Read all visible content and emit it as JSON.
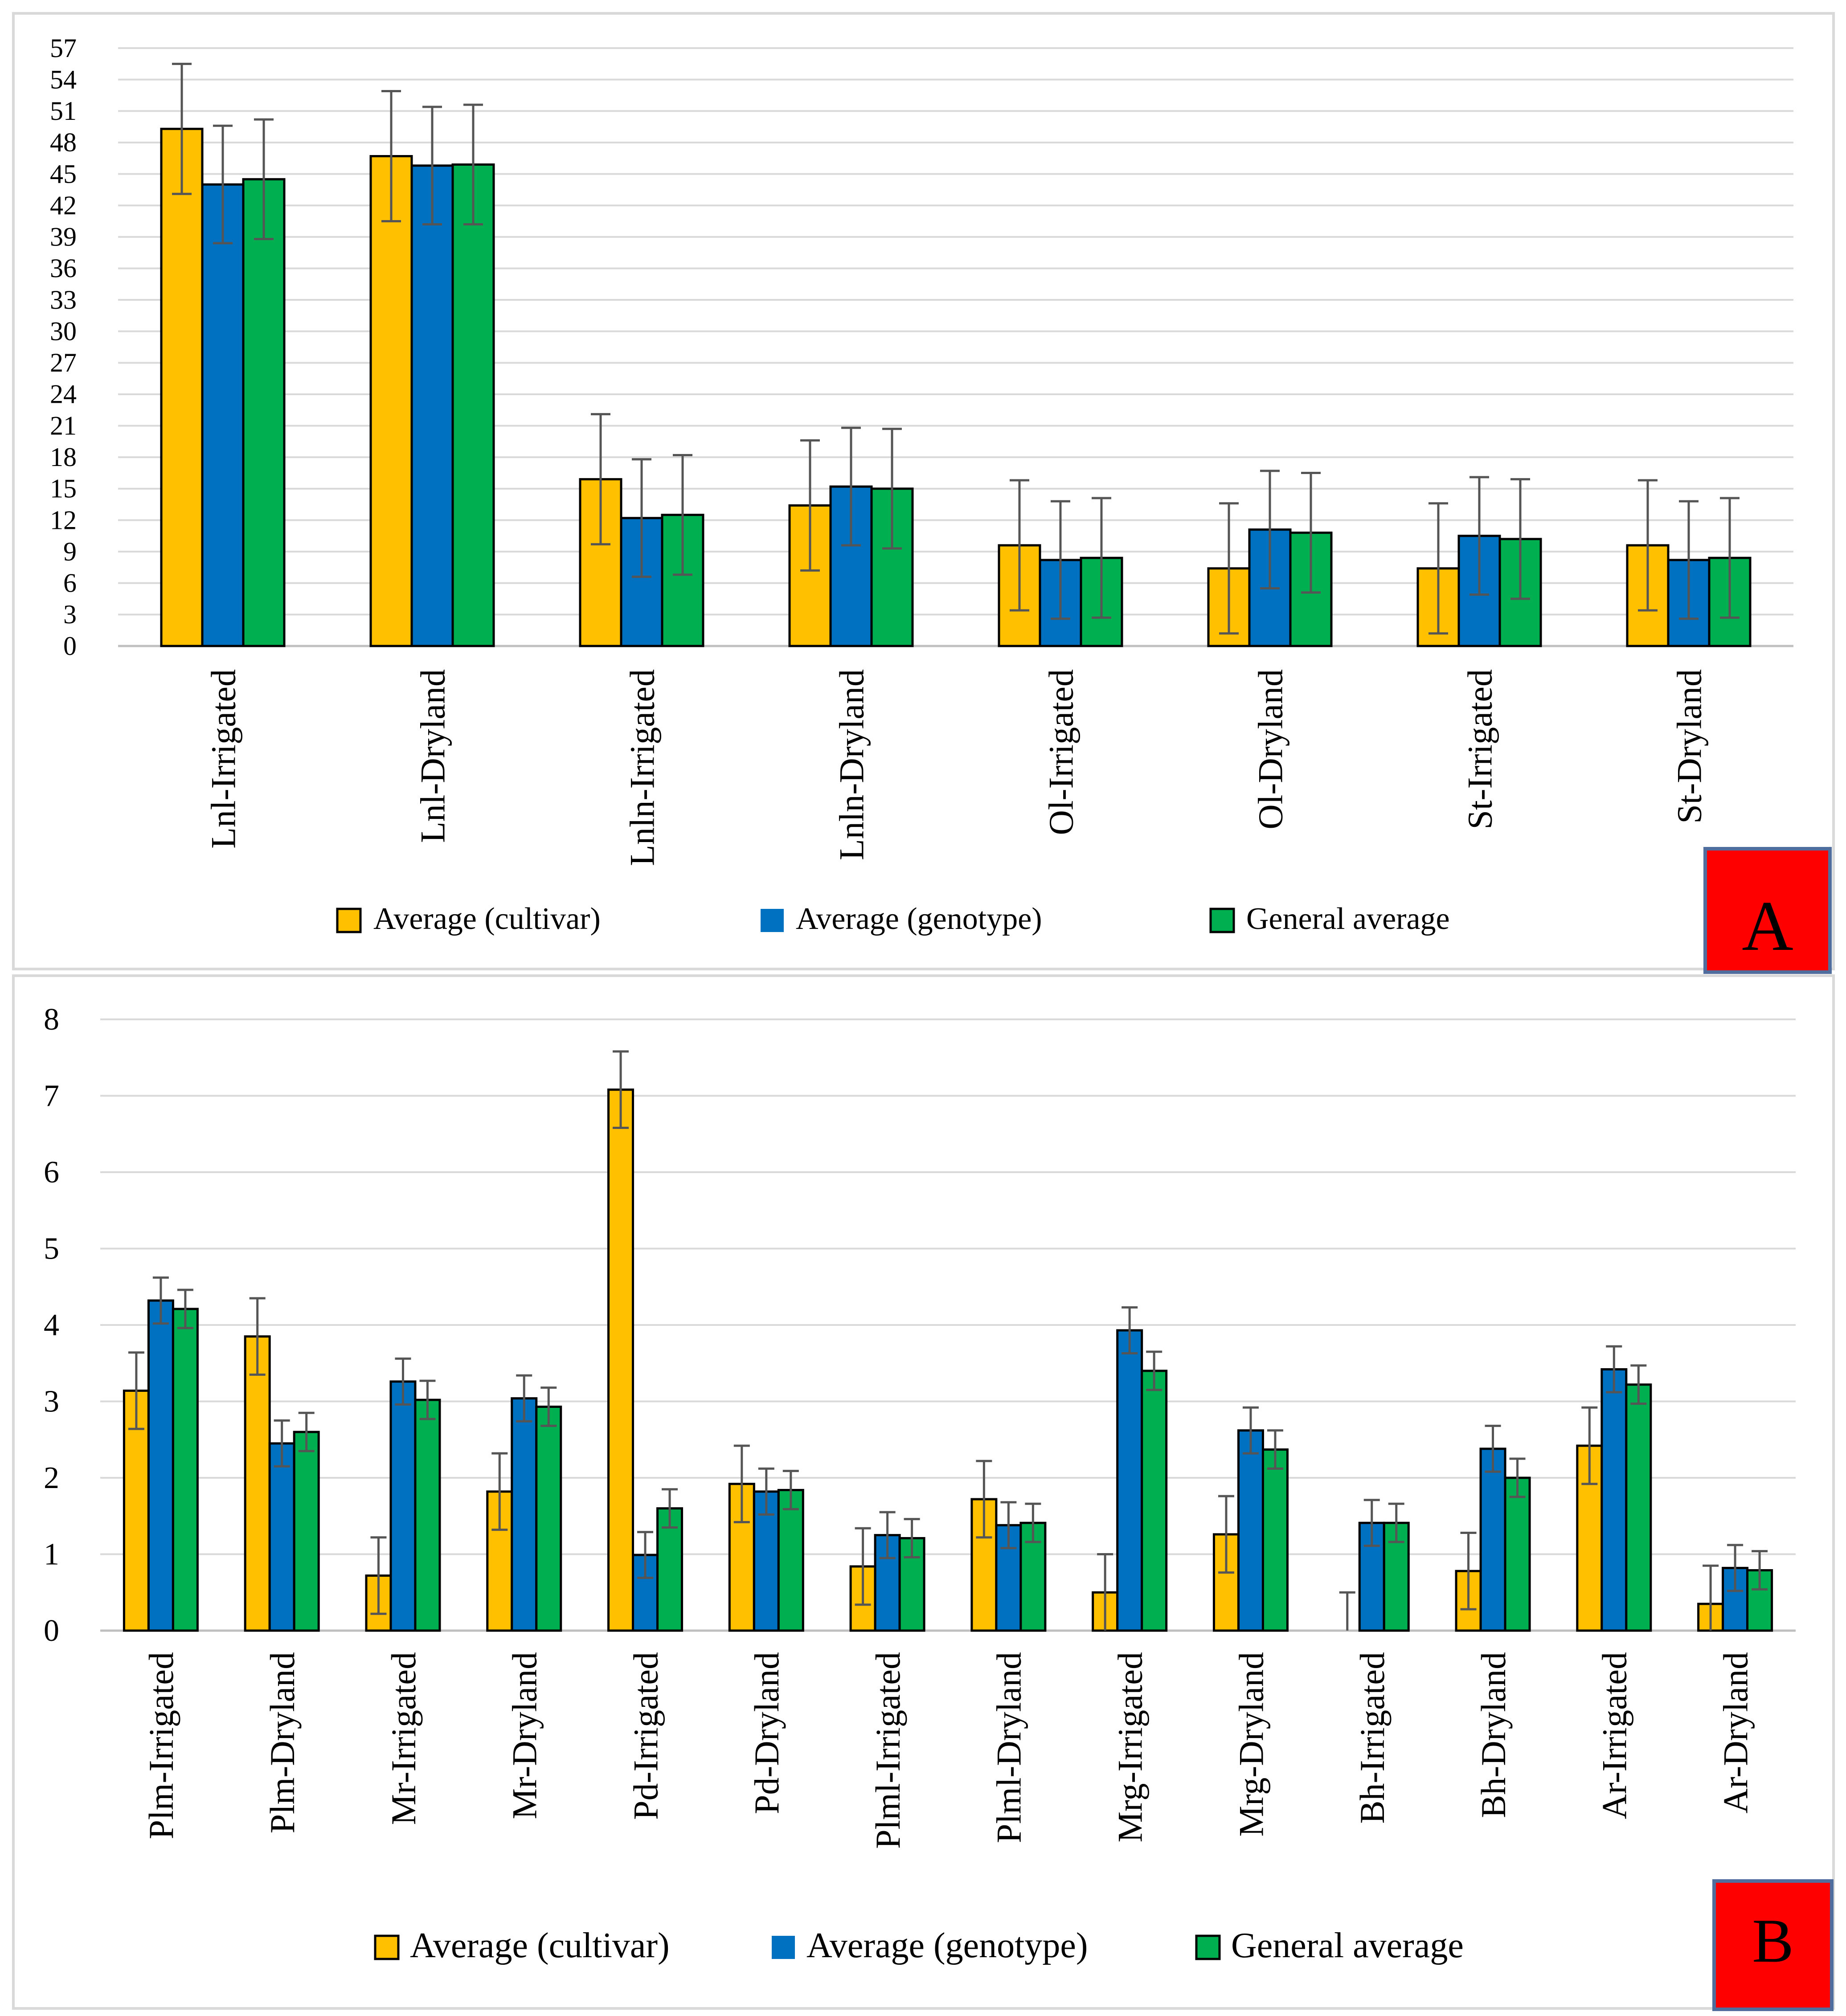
{
  "chart_data": [
    {
      "panel": "A",
      "type": "bar",
      "categories": [
        "Lnl-Irrigated",
        "Lnl-Dryland",
        "Lnln-Irrigated",
        "Lnln-Dryland",
        "Ol-Irrigated",
        "Ol-Dryland",
        "St-Irrigated",
        "St-Dryland"
      ],
      "series": [
        {
          "name": "Average (cultivar)",
          "color": "#FFC000",
          "values": [
            49.3,
            46.7,
            15.9,
            13.4,
            9.6,
            7.4,
            7.4,
            9.6
          ],
          "errors": [
            6.2,
            6.2,
            6.2,
            6.2,
            6.2,
            6.2,
            6.2,
            6.2
          ]
        },
        {
          "name": "Average (genotype)",
          "color": "#0070C0",
          "values": [
            44.0,
            45.8,
            12.2,
            15.2,
            8.2,
            11.1,
            10.5,
            8.2
          ],
          "errors": [
            5.6,
            5.6,
            5.6,
            5.6,
            5.6,
            5.6,
            5.6,
            5.6
          ]
        },
        {
          "name": "General average",
          "color": "#00B050",
          "values": [
            44.5,
            45.9,
            12.5,
            15.0,
            8.4,
            10.8,
            10.2,
            8.4
          ],
          "errors": [
            5.7,
            5.7,
            5.7,
            5.7,
            5.7,
            5.7,
            5.7,
            5.7
          ]
        }
      ],
      "ylim": [
        0,
        57
      ],
      "yticks": [
        "0",
        "3",
        "6",
        "9",
        "12",
        "15",
        "18",
        "21",
        "24",
        "27",
        "30",
        "33",
        "36",
        "39",
        "42",
        "45",
        "48",
        "51",
        "54",
        "57"
      ],
      "grid": true,
      "legend": "bottom-center",
      "title": "",
      "xlabel": "",
      "ylabel": ""
    },
    {
      "panel": "B",
      "type": "bar",
      "categories": [
        "Plm-Irrigated",
        "Plm-Dryland",
        "Mr-Irrigated",
        "Mr-Dryland",
        "Pd-Irrigated",
        "Pd-Dryland",
        "Plml-Irrigated",
        "Plml-Dryland",
        "Mrg-Irrigated",
        "Mrg-Dryland",
        "Bh-Irrigated",
        "Bh-Dryland",
        "Ar-Irrigated",
        "Ar-Dryland"
      ],
      "series": [
        {
          "name": "Average (cultivar)",
          "color": "#FFC000",
          "values": [
            3.14,
            3.85,
            0.72,
            1.82,
            7.08,
            1.92,
            0.84,
            1.72,
            0.5,
            1.26,
            0.0,
            0.78,
            2.42,
            0.35
          ],
          "errors": [
            0.5,
            0.5,
            0.5,
            0.5,
            0.5,
            0.5,
            0.5,
            0.5,
            0.5,
            0.5,
            0.5,
            0.5,
            0.5,
            0.5
          ]
        },
        {
          "name": "Average (genotype)",
          "color": "#0070C0",
          "values": [
            4.32,
            2.45,
            3.26,
            3.04,
            0.99,
            1.82,
            1.25,
            1.38,
            3.93,
            2.62,
            1.41,
            2.38,
            3.42,
            0.82
          ],
          "errors": [
            0.3,
            0.3,
            0.3,
            0.3,
            0.3,
            0.3,
            0.3,
            0.3,
            0.3,
            0.3,
            0.3,
            0.3,
            0.3,
            0.3
          ]
        },
        {
          "name": "General average",
          "color": "#00B050",
          "values": [
            4.21,
            2.6,
            3.02,
            2.93,
            1.6,
            1.84,
            1.21,
            1.41,
            3.4,
            2.37,
            1.41,
            2.0,
            3.22,
            0.79
          ],
          "errors": [
            0.25,
            0.25,
            0.25,
            0.25,
            0.25,
            0.25,
            0.25,
            0.25,
            0.25,
            0.25,
            0.25,
            0.25,
            0.25,
            0.25
          ]
        }
      ],
      "ylim": [
        0,
        8
      ],
      "yticks": [
        "0",
        "1",
        "2",
        "3",
        "4",
        "5",
        "6",
        "7",
        "8"
      ],
      "grid": true,
      "legend": "bottom-center",
      "title": "",
      "xlabel": "",
      "ylabel": ""
    }
  ]
}
